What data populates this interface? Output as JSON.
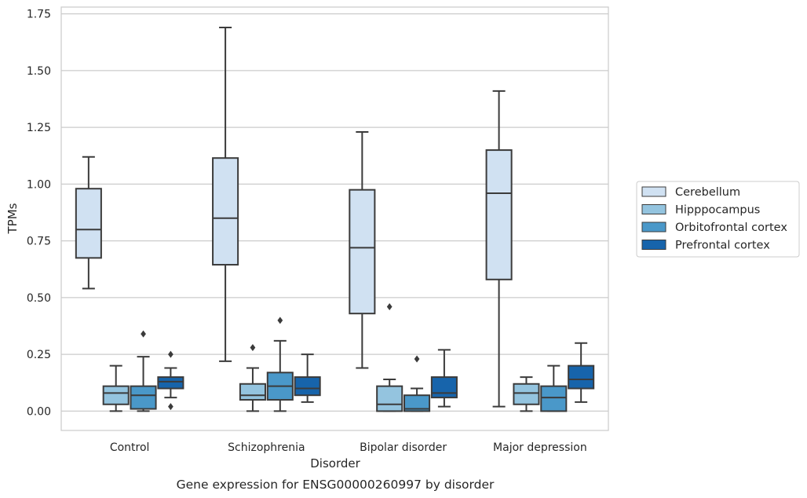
{
  "chart_data": {
    "type": "box",
    "caption": "Gene expression for ENSG00000260997 by disorder",
    "xlabel": "Disorder",
    "ylabel": "TPMs",
    "ylim": [
      -0.085,
      1.78
    ],
    "yticks": [
      0.0,
      0.25,
      0.5,
      0.75,
      1.0,
      1.25,
      1.5,
      1.75
    ],
    "ytick_labels": [
      "0.00",
      "0.25",
      "0.50",
      "0.75",
      "1.00",
      "1.25",
      "1.50",
      "1.75"
    ],
    "grid": true,
    "legend_position": "right",
    "categories": [
      "Control",
      "Schizophrenia",
      "Bipolar disorder",
      "Major depression"
    ],
    "series": [
      {
        "name": "Cerebellum",
        "color": "#d0e1f2",
        "boxes": [
          {
            "whislo": 0.54,
            "q1": 0.675,
            "med": 0.8,
            "q3": 0.98,
            "whishi": 1.12,
            "fliers": []
          },
          {
            "whislo": 0.22,
            "q1": 0.645,
            "med": 0.85,
            "q3": 1.115,
            "whishi": 1.69,
            "fliers": []
          },
          {
            "whislo": 0.19,
            "q1": 0.43,
            "med": 0.72,
            "q3": 0.975,
            "whishi": 1.23,
            "fliers": []
          },
          {
            "whislo": 0.02,
            "q1": 0.58,
            "med": 0.96,
            "q3": 1.15,
            "whishi": 1.41,
            "fliers": []
          }
        ]
      },
      {
        "name": "Hipppocampus",
        "color": "#94c4df",
        "boxes": [
          {
            "whislo": 0.0,
            "q1": 0.03,
            "med": 0.08,
            "q3": 0.11,
            "whishi": 0.2,
            "fliers": []
          },
          {
            "whislo": 0.0,
            "q1": 0.05,
            "med": 0.07,
            "q3": 0.12,
            "whishi": 0.19,
            "fliers": [
              0.28
            ]
          },
          {
            "whislo": 0.0,
            "q1": 0.0,
            "med": 0.03,
            "q3": 0.11,
            "whishi": 0.14,
            "fliers": [
              0.46
            ]
          },
          {
            "whislo": 0.0,
            "q1": 0.03,
            "med": 0.08,
            "q3": 0.12,
            "whishi": 0.15,
            "fliers": []
          }
        ]
      },
      {
        "name": "Orbitofrontal cortex",
        "color": "#4a98c9",
        "boxes": [
          {
            "whislo": 0.0,
            "q1": 0.01,
            "med": 0.07,
            "q3": 0.11,
            "whishi": 0.24,
            "fliers": [
              0.34
            ]
          },
          {
            "whislo": 0.0,
            "q1": 0.05,
            "med": 0.11,
            "q3": 0.17,
            "whishi": 0.31,
            "fliers": [
              0.4
            ]
          },
          {
            "whislo": 0.0,
            "q1": 0.0,
            "med": 0.01,
            "q3": 0.07,
            "whishi": 0.1,
            "fliers": [
              0.23
            ]
          },
          {
            "whislo": 0.0,
            "q1": 0.0,
            "med": 0.06,
            "q3": 0.11,
            "whishi": 0.2,
            "fliers": []
          }
        ]
      },
      {
        "name": "Prefrontal cortex",
        "color": "#1764ab",
        "boxes": [
          {
            "whislo": 0.06,
            "q1": 0.1,
            "med": 0.13,
            "q3": 0.15,
            "whishi": 0.19,
            "fliers": [
              0.25,
              0.02
            ]
          },
          {
            "whislo": 0.04,
            "q1": 0.07,
            "med": 0.1,
            "q3": 0.15,
            "whishi": 0.25,
            "fliers": []
          },
          {
            "whislo": 0.02,
            "q1": 0.06,
            "med": 0.08,
            "q3": 0.15,
            "whishi": 0.27,
            "fliers": []
          },
          {
            "whislo": 0.04,
            "q1": 0.1,
            "med": 0.14,
            "q3": 0.2,
            "whishi": 0.3,
            "fliers": []
          }
        ]
      }
    ]
  }
}
